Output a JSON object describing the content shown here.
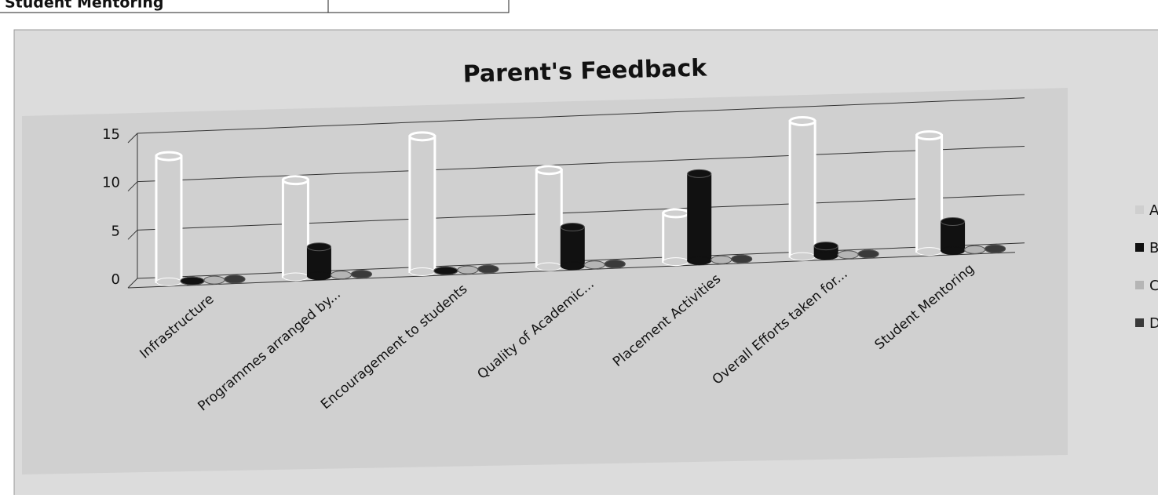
{
  "header_text": "Student Mentoring",
  "chart_data": {
    "type": "bar",
    "title": "Parent's Feedback",
    "categories": [
      "Infrastructure",
      "Programmes arranged by...",
      "Encouragement to students",
      "Quality of Academic...",
      "Placement Activities",
      "Overall Efforts taken for...",
      "Student Mentoring"
    ],
    "series": [
      {
        "name": "A",
        "color": "#cfcfcf",
        "values": [
          13,
          10,
          14,
          10,
          5,
          14,
          12
        ]
      },
      {
        "name": "B",
        "color": "#111111",
        "values": [
          0,
          3,
          0,
          4,
          9,
          1,
          3
        ]
      },
      {
        "name": "C",
        "color": "#b5b5b5",
        "values": [
          0,
          0,
          0,
          0,
          0,
          0,
          0
        ]
      },
      {
        "name": "D",
        "color": "#3a3a3a",
        "values": [
          0,
          0,
          0,
          0,
          0,
          0,
          0
        ]
      }
    ],
    "ylim": [
      0,
      15
    ],
    "yticks": [
      0,
      5,
      10,
      15
    ],
    "grid": true,
    "legend": "right"
  }
}
